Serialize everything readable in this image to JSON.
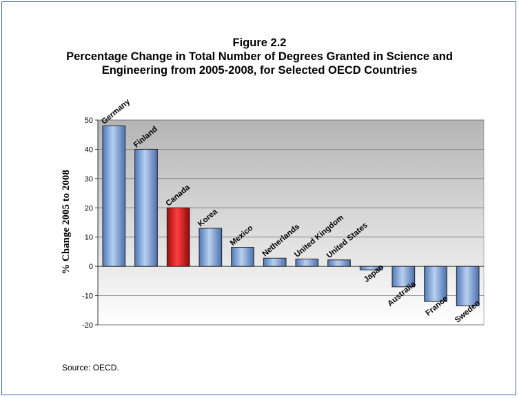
{
  "chart_data": {
    "type": "bar",
    "title": "Figure 2.2",
    "subtitle": "Percentage Change in Total Number of Degrees Granted in Science and Engineering from 2005-2008, for Selected OECD Countries",
    "subtitle_lines": [
      "Percentage Change in Total Number of Degrees Granted in Science and",
      "Engineering from 2005-2008, for Selected OECD Countries"
    ],
    "ylabel": "% Change 2005 to 2008",
    "xlabel": "",
    "ylim": [
      -20,
      50
    ],
    "yticks": [
      50,
      40,
      30,
      20,
      10,
      0,
      -10,
      -20
    ],
    "grid": true,
    "categories": [
      "Germany",
      "Finland",
      "Canada",
      "Korea",
      "Mexico",
      "Netherlands",
      "United Kingdom",
      "United States",
      "Japan",
      "Australia",
      "France",
      "Sweden"
    ],
    "values": [
      48,
      40,
      20,
      13,
      6.5,
      2.8,
      2.5,
      2.2,
      -1.2,
      -7,
      -12,
      -13.5
    ],
    "highlight": "Canada",
    "colors": {
      "bar": "#8fb3e0",
      "highlight": "#e02020",
      "plot_top": "#b0b0b0",
      "plot_bottom": "#ffffff"
    }
  },
  "source": "Source: OECD."
}
